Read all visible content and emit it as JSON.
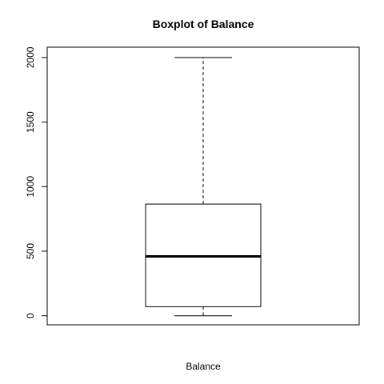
{
  "chart_data": {
    "type": "boxplot",
    "title": "Boxplot of Balance",
    "xlabel": "Balance",
    "ylabel": "",
    "ylim": [
      -70,
      2080
    ],
    "yticks": [
      0,
      500,
      1000,
      1500,
      2000
    ],
    "ytick_labels": [
      "0",
      "500",
      "1000",
      "1500",
      "2000"
    ],
    "grid": false,
    "legend": "none",
    "series": [
      {
        "min": 0,
        "q1": 70,
        "median": 460,
        "q3": 865,
        "max": 2000
      }
    ]
  }
}
